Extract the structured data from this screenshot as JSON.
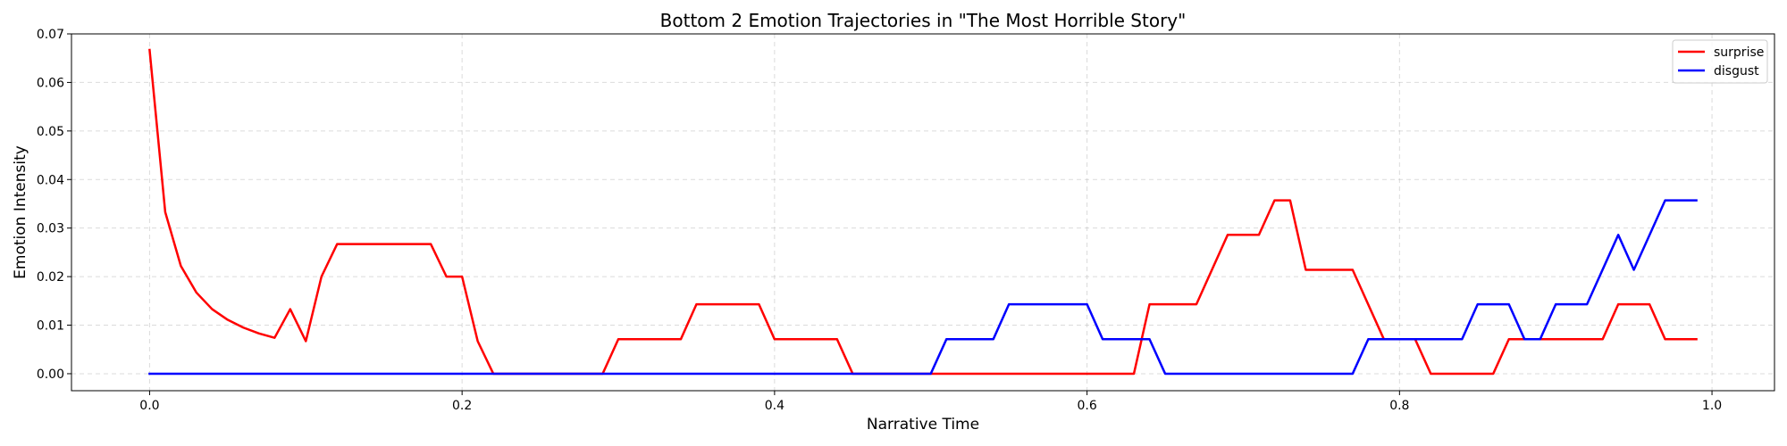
{
  "chart_data": {
    "type": "line",
    "title": "Bottom 2 Emotion Trajectories in \"The Most Horrible Story\"",
    "xlabel": "Narrative Time",
    "ylabel": "Emotion Intensity",
    "xlim": [
      -0.05,
      1.04
    ],
    "ylim": [
      -0.0035,
      0.07
    ],
    "xticks": [
      0.0,
      0.2,
      0.4,
      0.6,
      0.8,
      1.0
    ],
    "xtick_labels": [
      "0.0",
      "0.2",
      "0.4",
      "0.6",
      "0.8",
      "1.0"
    ],
    "yticks": [
      0.0,
      0.01,
      0.02,
      0.03,
      0.04,
      0.05,
      0.06,
      0.07
    ],
    "ytick_labels": [
      "0.00",
      "0.01",
      "0.02",
      "0.03",
      "0.04",
      "0.05",
      "0.06",
      "0.07"
    ],
    "grid": true,
    "legend_position": "top-right",
    "series": [
      {
        "name": "surprise",
        "color": "#ff0000",
        "points": [
          [
            0.0,
            0.0667
          ],
          [
            0.01,
            0.0333
          ],
          [
            0.02,
            0.0222
          ],
          [
            0.03,
            0.0167
          ],
          [
            0.04,
            0.0133
          ],
          [
            0.05,
            0.0111
          ],
          [
            0.06,
            0.0095
          ],
          [
            0.07,
            0.0083
          ],
          [
            0.08,
            0.0074
          ],
          [
            0.09,
            0.0133
          ],
          [
            0.1,
            0.0067
          ],
          [
            0.11,
            0.02
          ],
          [
            0.12,
            0.0267
          ],
          [
            0.18,
            0.0267
          ],
          [
            0.19,
            0.02
          ],
          [
            0.2,
            0.02
          ],
          [
            0.21,
            0.0067
          ],
          [
            0.22,
            0.0
          ],
          [
            0.29,
            0.0
          ],
          [
            0.3,
            0.0071
          ],
          [
            0.34,
            0.0071
          ],
          [
            0.35,
            0.0143
          ],
          [
            0.39,
            0.0143
          ],
          [
            0.4,
            0.0071
          ],
          [
            0.44,
            0.0071
          ],
          [
            0.45,
            0.0
          ],
          [
            0.63,
            0.0
          ],
          [
            0.64,
            0.0143
          ],
          [
            0.67,
            0.0143
          ],
          [
            0.69,
            0.0286
          ],
          [
            0.71,
            0.0286
          ],
          [
            0.72,
            0.0357
          ],
          [
            0.73,
            0.0357
          ],
          [
            0.74,
            0.0214
          ],
          [
            0.77,
            0.0214
          ],
          [
            0.79,
            0.0071
          ],
          [
            0.81,
            0.0071
          ],
          [
            0.82,
            0.0
          ],
          [
            0.86,
            0.0
          ],
          [
            0.87,
            0.0071
          ],
          [
            0.93,
            0.0071
          ],
          [
            0.94,
            0.0143
          ],
          [
            0.96,
            0.0143
          ],
          [
            0.97,
            0.0071
          ],
          [
            0.99,
            0.0071
          ]
        ]
      },
      {
        "name": "disgust",
        "color": "#0000ff",
        "points": [
          [
            0.0,
            0.0
          ],
          [
            0.5,
            0.0
          ],
          [
            0.51,
            0.0071
          ],
          [
            0.54,
            0.0071
          ],
          [
            0.55,
            0.0143
          ],
          [
            0.6,
            0.0143
          ],
          [
            0.61,
            0.0071
          ],
          [
            0.64,
            0.0071
          ],
          [
            0.65,
            0.0
          ],
          [
            0.77,
            0.0
          ],
          [
            0.78,
            0.0071
          ],
          [
            0.84,
            0.0071
          ],
          [
            0.85,
            0.0143
          ],
          [
            0.87,
            0.0143
          ],
          [
            0.88,
            0.0071
          ],
          [
            0.89,
            0.0071
          ],
          [
            0.9,
            0.0143
          ],
          [
            0.92,
            0.0143
          ],
          [
            0.94,
            0.0286
          ],
          [
            0.95,
            0.0214
          ],
          [
            0.97,
            0.0357
          ],
          [
            0.99,
            0.0357
          ]
        ]
      }
    ]
  }
}
